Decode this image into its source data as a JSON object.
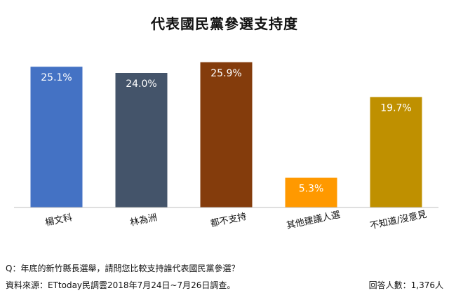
{
  "chart_data": {
    "type": "bar",
    "title": "代表國民黨參選支持度",
    "categories": [
      "楊文科",
      "林為洲",
      "都不支持",
      "其他建議人選",
      "不知道/沒意見"
    ],
    "values": [
      25.1,
      24.0,
      25.9,
      5.3,
      19.7
    ],
    "value_labels": [
      "25.1%",
      "24.0%",
      "25.9%",
      "5.3%",
      "19.7%"
    ],
    "colors": [
      "#4472c4",
      "#44546a",
      "#843c0c",
      "#ff9900",
      "#bf9000"
    ],
    "ylim": [
      0,
      27
    ],
    "grid": false,
    "legend": "none",
    "xlabel": "",
    "ylabel": ""
  },
  "footer": {
    "question": "Q：年底的新竹縣長選舉，請問您比較支持誰代表國民黨參選？",
    "source": "資料來源：ETtoday民調雲2018年7月24日~7月26日調查。",
    "respondents": "回答人數：1,376人"
  }
}
